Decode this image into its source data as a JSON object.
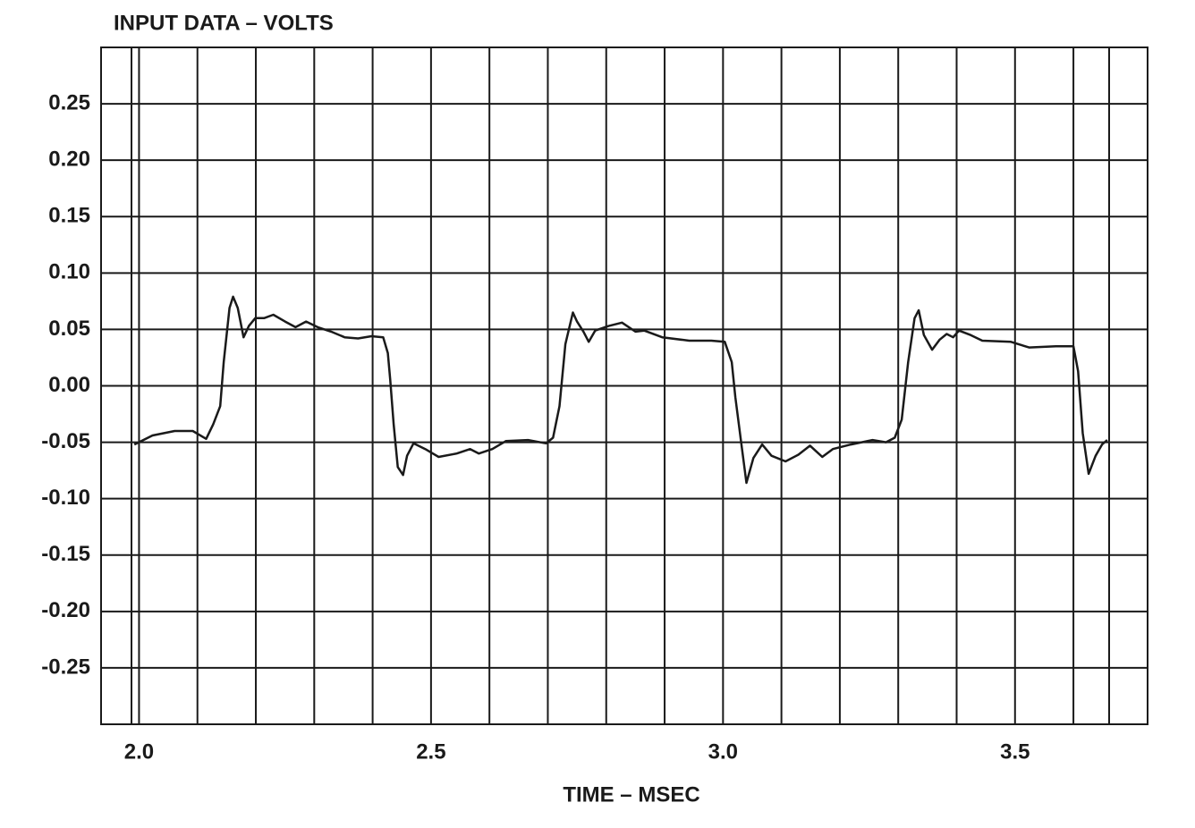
{
  "chart_data": {
    "type": "line",
    "title": "INPUT DATA – VOLTS",
    "x_label": "TIME – MSEC",
    "xlim": [
      1.935,
      3.727
    ],
    "ylim": [
      -0.3,
      0.3
    ],
    "xticks": [
      {
        "value": 2.0,
        "label": "2.0"
      },
      2.5,
      {
        "value": 3.0,
        "label": "3.0"
      },
      3.5
    ],
    "x_minor_grid": [
      2.1,
      2.2,
      2.3,
      2.4,
      2.6,
      2.7,
      2.8,
      2.9,
      3.1,
      3.2,
      3.3,
      3.4,
      3.6
    ],
    "yticks": [
      0.25,
      {
        "value": 0.2,
        "label": "0.20"
      },
      0.15,
      {
        "value": 0.1,
        "label": "0.10"
      },
      0.05,
      {
        "value": 0,
        "label": "0.00"
      },
      -0.05,
      {
        "value": -0.1,
        "label": "-0.10"
      },
      -0.15,
      {
        "value": -0.2,
        "label": "-0.20"
      },
      -0.25
    ],
    "grid": true,
    "color": "#1a1a1a",
    "x": [
      1.992,
      2.023,
      2.061,
      2.092,
      2.115,
      2.127,
      2.139,
      2.145,
      2.155,
      2.161,
      2.169,
      2.179,
      2.188,
      2.199,
      2.214,
      2.23,
      2.25,
      2.268,
      2.286,
      2.306,
      2.329,
      2.352,
      2.375,
      2.398,
      2.418,
      2.426,
      2.43,
      2.436,
      2.443,
      2.452,
      2.459,
      2.47,
      2.49,
      2.513,
      2.544,
      2.567,
      2.582,
      2.605,
      2.628,
      2.666,
      2.697,
      2.709,
      2.72,
      2.73,
      2.743,
      2.75,
      2.761,
      2.77,
      2.781,
      2.804,
      2.827,
      2.85,
      2.865,
      2.896,
      2.942,
      2.98,
      3.003,
      3.015,
      3.021,
      3.031,
      3.04,
      3.052,
      3.067,
      3.083,
      3.107,
      3.129,
      3.149,
      3.17,
      3.188,
      3.219,
      3.256,
      3.279,
      3.294,
      3.306,
      3.317,
      3.328,
      3.335,
      3.344,
      3.358,
      3.371,
      3.383,
      3.394,
      3.404,
      3.424,
      3.444,
      3.493,
      3.524,
      3.57,
      3.6,
      3.608,
      3.616,
      3.626,
      3.638,
      3.649,
      3.658
    ],
    "values": [
      -0.052,
      -0.044,
      -0.04,
      -0.04,
      -0.047,
      -0.034,
      -0.018,
      0.021,
      0.069,
      0.079,
      0.069,
      0.043,
      0.053,
      0.06,
      0.06,
      0.063,
      0.057,
      0.052,
      0.057,
      0.052,
      0.048,
      0.043,
      0.042,
      0.044,
      0.043,
      0.029,
      0.006,
      -0.034,
      -0.072,
      -0.079,
      -0.062,
      -0.051,
      -0.056,
      -0.063,
      -0.06,
      -0.056,
      -0.06,
      -0.056,
      -0.049,
      -0.048,
      -0.051,
      -0.046,
      -0.018,
      0.037,
      0.065,
      0.057,
      0.048,
      0.039,
      0.049,
      0.053,
      0.056,
      0.048,
      0.049,
      0.043,
      0.04,
      0.04,
      0.039,
      0.021,
      -0.01,
      -0.05,
      -0.086,
      -0.064,
      -0.052,
      -0.062,
      -0.067,
      -0.061,
      -0.053,
      -0.063,
      -0.056,
      -0.052,
      -0.048,
      -0.05,
      -0.046,
      -0.03,
      0.021,
      0.06,
      0.067,
      0.045,
      0.032,
      0.041,
      0.046,
      0.043,
      0.049,
      0.045,
      0.04,
      0.039,
      0.034,
      0.035,
      0.035,
      0.013,
      -0.042,
      -0.078,
      -0.062,
      -0.052,
      -0.048
    ]
  }
}
